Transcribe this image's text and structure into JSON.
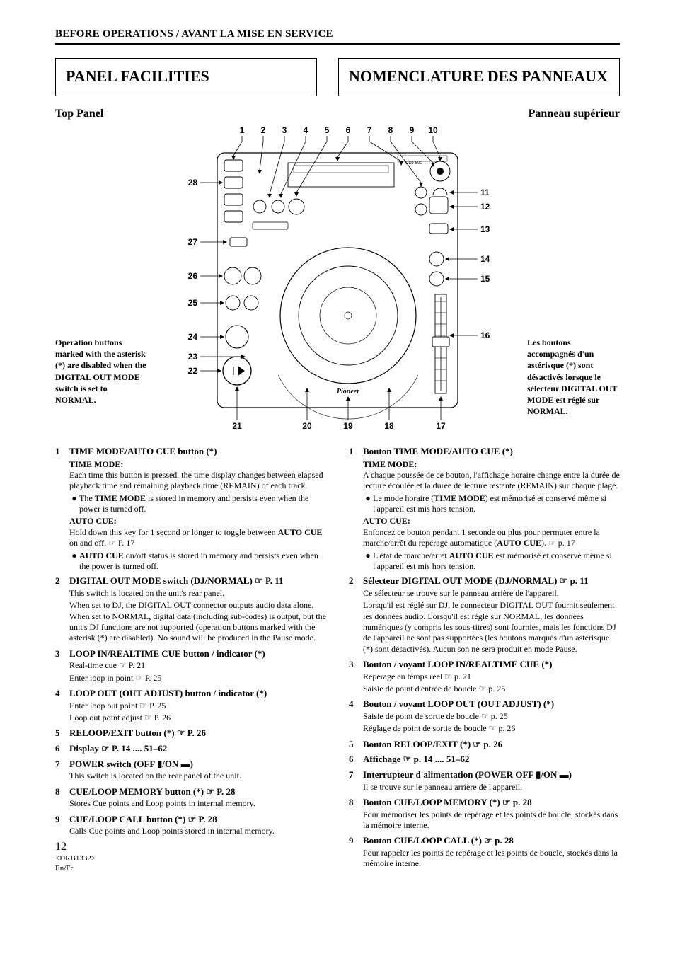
{
  "page": {
    "section_header": "BEFORE OPERATIONS / AVANT LA MISE EN SERVICE",
    "title_left": "PANEL FACILITIES",
    "title_right": "NOMENCLATURE DES PANNEAUX",
    "subhead_left": "Top Panel",
    "subhead_right": "Panneau supérieur",
    "note_left": "Operation buttons marked with the asterisk (*) are disabled when the DIGITAL OUT MODE switch is set to NORMAL.",
    "note_right": "Les boutons accompagnés d'un astérisque (*) sont désactivés lorsque le sélecteur DIGITAL OUT MODE est réglé sur NORMAL.",
    "page_number": "12",
    "doc_code": "<DRB1332>",
    "langs": "En/Fr"
  },
  "diagram": {
    "unit_model": "CDJ-800",
    "unit_brand": "Pioneer",
    "callouts_top": [
      "1",
      "2",
      "3",
      "4",
      "5",
      "6",
      "7",
      "8",
      "9",
      "10"
    ],
    "callouts_right": [
      "11",
      "12",
      "13",
      "14",
      "15",
      "16"
    ],
    "callouts_bottom": [
      "21",
      "20",
      "19",
      "18",
      "17"
    ],
    "callouts_left": [
      "28",
      "27",
      "26",
      "25",
      "24",
      "23",
      "22"
    ],
    "colors": {
      "unit_fill": "#ffffff",
      "stroke": "#000000",
      "leader": "#000000",
      "bg": "#ffffff"
    }
  },
  "en": [
    {
      "n": "1",
      "title": "TIME MODE/AUTO CUE button (*)",
      "blocks": [
        {
          "sub": "TIME MODE:"
        },
        {
          "desc": "Each time this button is pressed, the time display changes between elapsed playback time and remaining playback time (REMAIN) of each track."
        },
        {
          "bullet": "The <b>TIME MODE</b> is stored in memory and persists even when the power is turned off."
        },
        {
          "sub": "AUTO CUE:"
        },
        {
          "desc": "Hold down this key for 1 second or longer to toggle between <b>AUTO CUE</b> on and off. ☞ P. 17"
        },
        {
          "bullet": "<b>AUTO CUE</b> on/off status is stored in memory and persists even when the power is turned off."
        }
      ]
    },
    {
      "n": "2",
      "title": "DIGITAL OUT MODE switch (DJ/NORMAL) ☞ P. 11",
      "blocks": [
        {
          "desc": "This switch is located on the unit's rear panel."
        },
        {
          "desc": "When set to DJ, the DIGITAL OUT connector outputs audio data alone. When set to NORMAL, digital data (including sub-codes) is output, but the unit's DJ functions are not supported (operation buttons marked with the asterisk (*) are disabled). No sound will be produced in the Pause mode."
        }
      ]
    },
    {
      "n": "3",
      "title": "LOOP IN/REALTIME CUE button / indicator (*)",
      "blocks": [
        {
          "desc": "Real-time cue ☞ P. 21"
        },
        {
          "desc": "Enter loop in point ☞ P. 25"
        }
      ]
    },
    {
      "n": "4",
      "title": "LOOP OUT (OUT ADJUST) button / indicator (*)",
      "blocks": [
        {
          "desc": "Enter loop out point ☞ P. 25"
        },
        {
          "desc": "Loop out point adjust ☞ P. 26"
        }
      ]
    },
    {
      "n": "5",
      "title": "RELOOP/EXIT button (*) ☞ P. 26",
      "blocks": []
    },
    {
      "n": "6",
      "title": "Display ☞ P. 14 .... 51–62",
      "blocks": []
    },
    {
      "n": "7",
      "title": "POWER switch (OFF ▮/ON ▬)",
      "blocks": [
        {
          "desc": "This switch is located on the rear panel of the unit."
        }
      ]
    },
    {
      "n": "8",
      "title": "CUE/LOOP MEMORY button (*) ☞ P. 28",
      "blocks": [
        {
          "desc": "Stores Cue points and Loop points in internal memory."
        }
      ]
    },
    {
      "n": "9",
      "title": "CUE/LOOP CALL button (*) ☞ P. 28",
      "blocks": [
        {
          "desc": "Calls Cue points and Loop points stored in internal memory."
        }
      ]
    }
  ],
  "fr": [
    {
      "n": "1",
      "title": "Bouton TIME MODE/AUTO CUE (*)",
      "blocks": [
        {
          "sub": "TIME MODE:"
        },
        {
          "desc": "A chaque poussée de ce bouton, l'affichage horaire change entre la durée de lecture écoulée et la durée de lecture restante (REMAIN) sur chaque plage."
        },
        {
          "bullet": "Le mode horaire (<b>TIME MODE</b>) est mémorisé et conservé même si l'appareil est mis hors tension."
        },
        {
          "sub": "AUTO CUE:"
        },
        {
          "desc": "Enfoncez ce bouton pendant 1 seconde ou plus pour permuter entre la marche/arrêt du repérage automatique (<b>AUTO CUE</b>). ☞ p. 17"
        },
        {
          "bullet": "L'état de marche/arrêt <b>AUTO CUE</b> est mémorisé et conservé même si l'appareil est mis hors tension."
        }
      ]
    },
    {
      "n": "2",
      "title": "Sélecteur DIGITAL OUT MODE (DJ/NORMAL) ☞ p. 11",
      "blocks": [
        {
          "desc": "Ce sélecteur se trouve sur le panneau arrière de l'appareil."
        },
        {
          "desc": "Lorsqu'il est réglé sur DJ, le connecteur DIGITAL OUT fournit seulement les données audio. Lorsqu'il est réglé sur NORMAL, les données numériques (y compris les sous-titres) sont fournies, mais les fonctions DJ de l'appareil ne sont pas supportées (les boutons marqués d'un astérisque (*) sont désactivés). Aucun son ne sera produit en mode Pause."
        }
      ]
    },
    {
      "n": "3",
      "title": "Bouton / voyant LOOP IN/REALTIME CUE (*)",
      "blocks": [
        {
          "desc": "Repérage en temps réel ☞ p. 21"
        },
        {
          "desc": "Saisie de point d'entrée de boucle ☞ p. 25"
        }
      ]
    },
    {
      "n": "4",
      "title": "Bouton / voyant LOOP OUT (OUT ADJUST) (*)",
      "blocks": [
        {
          "desc": "Saisie de point de sortie de boucle ☞ p. 25"
        },
        {
          "desc": "Réglage de point de sortie de boucle ☞ p. 26"
        }
      ]
    },
    {
      "n": "5",
      "title": "Bouton RELOOP/EXIT (*) ☞ p. 26",
      "blocks": []
    },
    {
      "n": "6",
      "title": "Affichage ☞ p. 14 .... 51–62",
      "blocks": []
    },
    {
      "n": "7",
      "title": "Interrupteur d'alimentation (POWER OFF ▮/ON ▬)",
      "blocks": [
        {
          "desc": "Il se trouve sur le panneau arrière de l'appareil."
        }
      ]
    },
    {
      "n": "8",
      "title": "Bouton CUE/LOOP MEMORY (*) ☞ p. 28",
      "blocks": [
        {
          "desc": "Pour mémoriser les points de repérage et les points de boucle, stockés dans la mémoire interne."
        }
      ]
    },
    {
      "n": "9",
      "title": "Bouton CUE/LOOP CALL (*) ☞ p. 28",
      "blocks": [
        {
          "desc": "Pour rappeler les points de repérage et les points de boucle, stockés dans la mémoire interne."
        }
      ]
    }
  ]
}
